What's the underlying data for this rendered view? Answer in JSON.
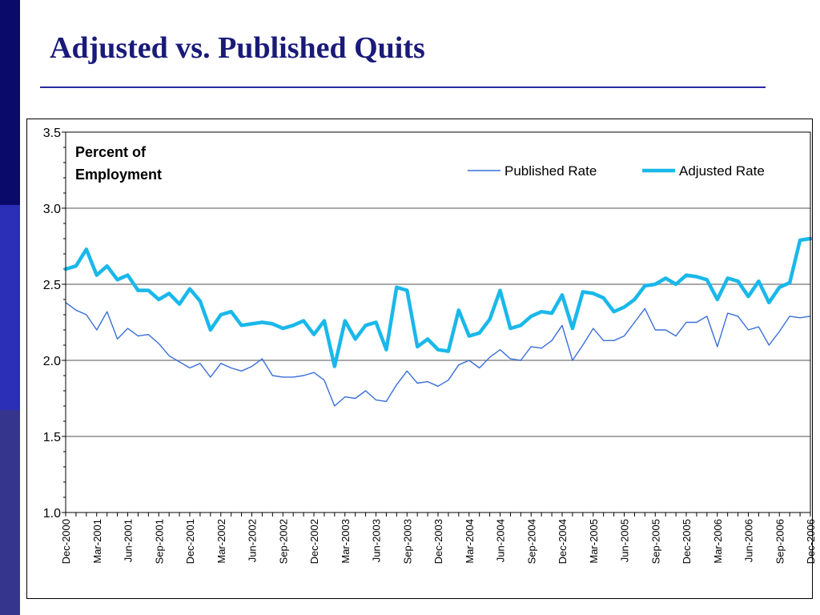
{
  "title": "Adjusted vs. Published Quits",
  "chart_data": {
    "type": "line",
    "ylabel": "Percent of Employment",
    "ylabel_lines": [
      "Percent of",
      "Employment"
    ],
    "ylim": [
      1.0,
      3.5
    ],
    "yticks": [
      "1.0",
      "1.5",
      "2.0",
      "2.5",
      "3.0",
      "3.5"
    ],
    "grid": true,
    "legend_position": "top-right",
    "x": [
      "Dec-2000",
      "Jan-2001",
      "Feb-2001",
      "Mar-2001",
      "Apr-2001",
      "May-2001",
      "Jun-2001",
      "Jul-2001",
      "Aug-2001",
      "Sep-2001",
      "Oct-2001",
      "Nov-2001",
      "Dec-2001",
      "Jan-2002",
      "Feb-2002",
      "Mar-2002",
      "Apr-2002",
      "May-2002",
      "Jun-2002",
      "Jul-2002",
      "Aug-2002",
      "Sep-2002",
      "Oct-2002",
      "Nov-2002",
      "Dec-2002",
      "Jan-2003",
      "Feb-2003",
      "Mar-2003",
      "Apr-2003",
      "May-2003",
      "Jun-2003",
      "Jul-2003",
      "Aug-2003",
      "Sep-2003",
      "Oct-2003",
      "Nov-2003",
      "Dec-2003",
      "Jan-2004",
      "Feb-2004",
      "Mar-2004",
      "Apr-2004",
      "May-2004",
      "Jun-2004",
      "Jul-2004",
      "Aug-2004",
      "Sep-2004",
      "Oct-2004",
      "Nov-2004",
      "Dec-2004",
      "Jan-2005",
      "Feb-2005",
      "Mar-2005",
      "Apr-2005",
      "May-2005",
      "Jun-2005",
      "Jul-2005",
      "Aug-2005",
      "Sep-2005",
      "Oct-2005",
      "Nov-2005",
      "Dec-2005",
      "Jan-2006",
      "Feb-2006",
      "Mar-2006",
      "Apr-2006",
      "May-2006",
      "Jun-2006",
      "Jul-2006",
      "Aug-2006",
      "Sep-2006",
      "Oct-2006",
      "Nov-2006",
      "Dec-2006"
    ],
    "xtick_labels": [
      "Dec-2000",
      "Mar-2001",
      "Jun-2001",
      "Sep-2001",
      "Dec-2001",
      "Mar-2002",
      "Jun-2002",
      "Sep-2002",
      "Dec-2002",
      "Mar-2003",
      "Jun-2003",
      "Sep-2003",
      "Dec-2003",
      "Mar-2004",
      "Jun-2004",
      "Sep-2004",
      "Dec-2004",
      "Mar-2005",
      "Jun-2005",
      "Sep-2005",
      "Dec-2005",
      "Mar-2006",
      "Jun-2006",
      "Sep-2006",
      "Dec-2006"
    ],
    "series": [
      {
        "name": "Published Rate",
        "color": "#3a6fd8",
        "values": [
          2.38,
          2.33,
          2.3,
          2.2,
          2.32,
          2.14,
          2.21,
          2.16,
          2.17,
          2.11,
          2.03,
          1.99,
          1.95,
          1.98,
          1.89,
          1.98,
          1.95,
          1.93,
          1.96,
          2.01,
          1.9,
          1.89,
          1.89,
          1.9,
          1.92,
          1.87,
          1.7,
          1.76,
          1.75,
          1.8,
          1.74,
          1.73,
          1.84,
          1.93,
          1.85,
          1.86,
          1.83,
          1.87,
          1.97,
          2.0,
          1.95,
          2.02,
          2.07,
          2.01,
          2.0,
          2.09,
          2.08,
          2.13,
          2.23,
          2.0,
          2.1,
          2.21,
          2.13,
          2.13,
          2.16,
          2.25,
          2.34,
          2.2,
          2.2,
          2.16,
          2.25,
          2.25,
          2.29,
          2.09,
          2.31,
          2.29,
          2.2,
          2.22,
          2.1,
          2.19,
          2.29,
          2.28,
          2.29
        ]
      },
      {
        "name": "Adjusted Rate",
        "color": "#1ab8ea",
        "values": [
          2.6,
          2.62,
          2.73,
          2.56,
          2.62,
          2.53,
          2.56,
          2.46,
          2.46,
          2.4,
          2.44,
          2.37,
          2.47,
          2.39,
          2.2,
          2.3,
          2.32,
          2.23,
          2.24,
          2.25,
          2.24,
          2.21,
          2.23,
          2.26,
          2.17,
          2.26,
          1.96,
          2.26,
          2.14,
          2.23,
          2.25,
          2.07,
          2.48,
          2.46,
          2.09,
          2.14,
          2.07,
          2.06,
          2.33,
          2.16,
          2.18,
          2.27,
          2.46,
          2.21,
          2.23,
          2.29,
          2.32,
          2.31,
          2.43,
          2.21,
          2.45,
          2.44,
          2.41,
          2.32,
          2.35,
          2.4,
          2.49,
          2.5,
          2.54,
          2.5,
          2.56,
          2.55,
          2.53,
          2.4,
          2.54,
          2.52,
          2.42,
          2.52,
          2.38,
          2.48,
          2.51,
          2.79,
          2.8
        ]
      }
    ]
  }
}
